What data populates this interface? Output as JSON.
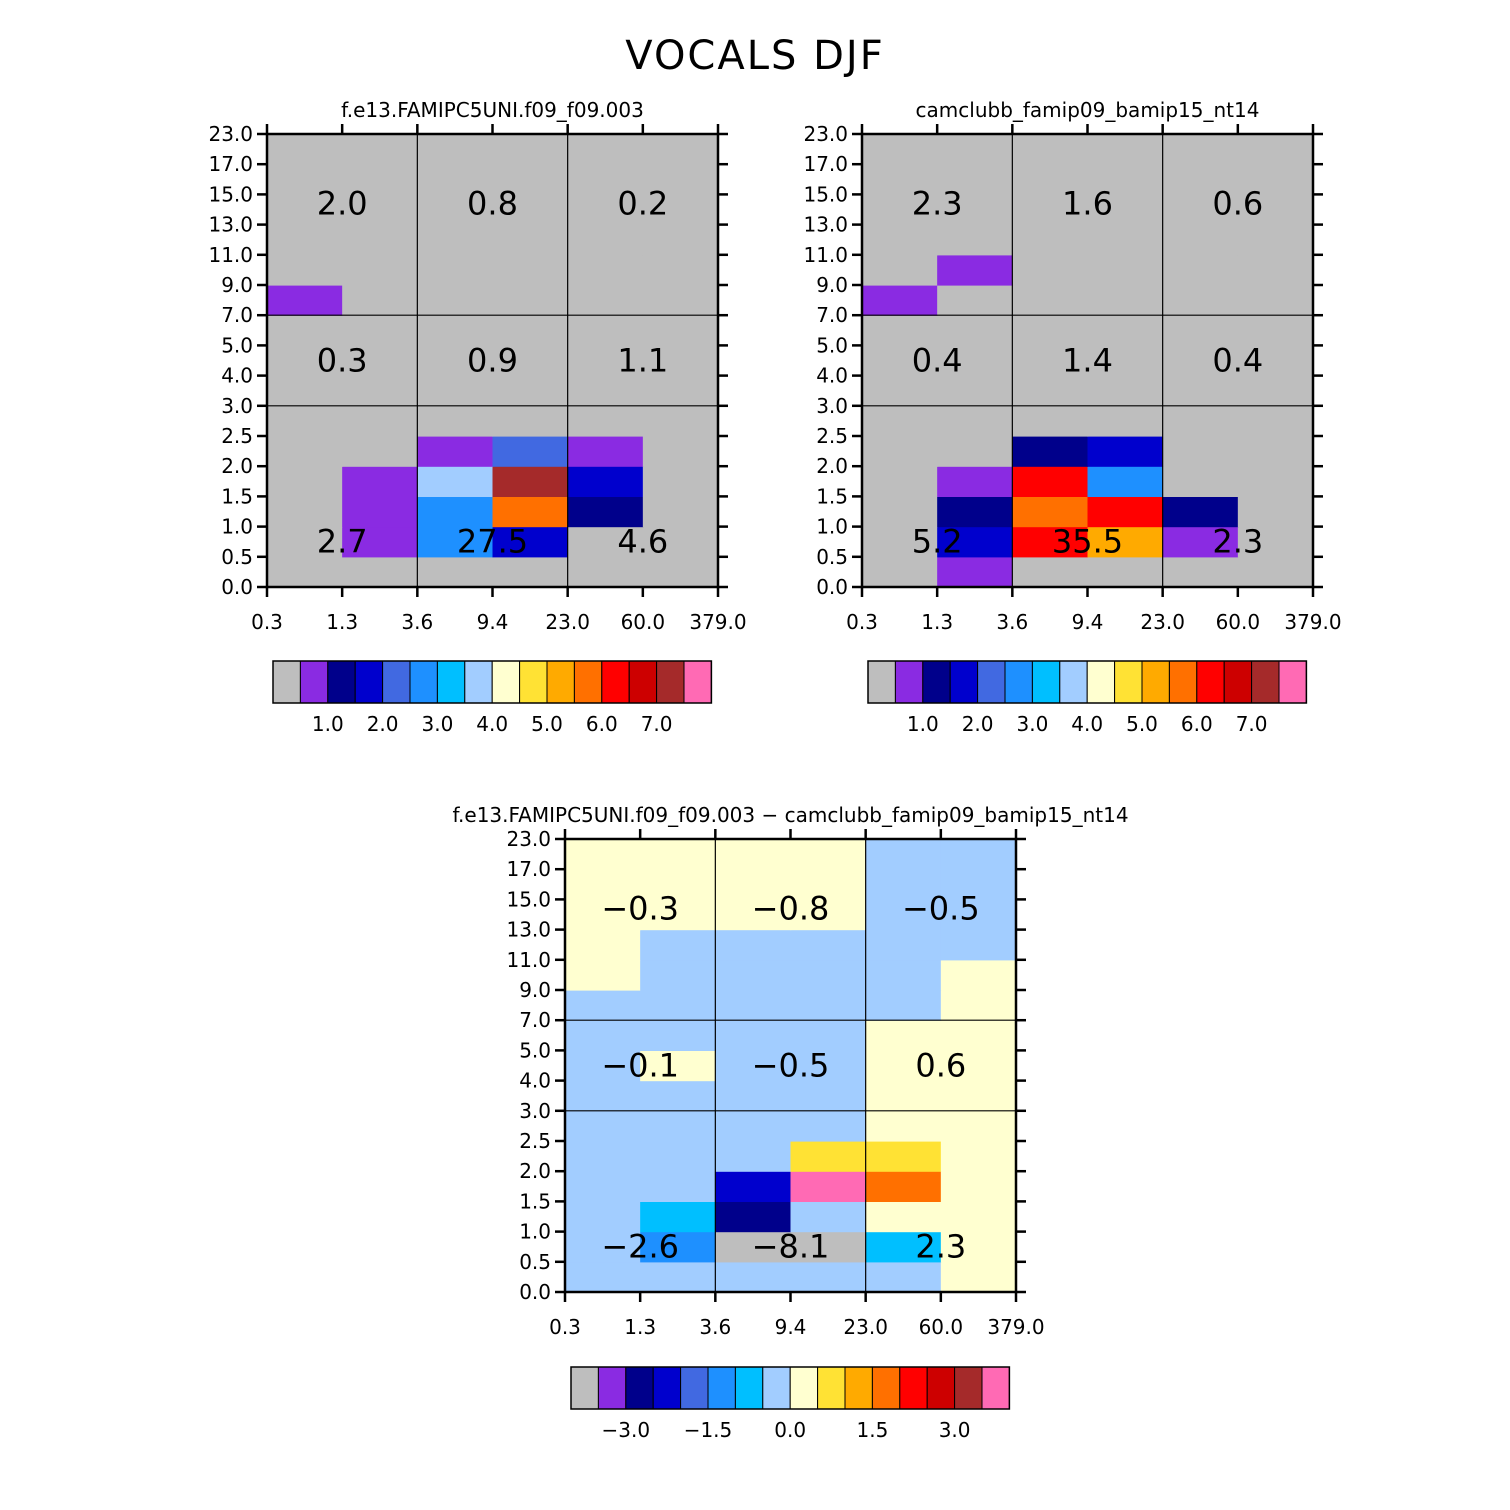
{
  "page_title": "VOCALS DJF",
  "palette": [
    "#bebebe",
    "#8a2be2",
    "#00008b",
    "#0000cd",
    "#4169e1",
    "#1e90ff",
    "#00bfff",
    "#a2cdff",
    "#ffffd0",
    "#ffe234",
    "#ffaa00",
    "#ff7000",
    "#ff0000",
    "#cd0000",
    "#a52a2a",
    "#ff6ab4"
  ],
  "grid_colors": {
    "frame": "#000000",
    "missing": "#bebebe"
  },
  "chart_data": [
    {
      "type": "heatmap",
      "title": "f.e13.FAMIPC5UNI.f09_f09.003",
      "x_ticks": [
        "0.3",
        "1.3",
        "3.6",
        "9.4",
        "23.0",
        "60.0",
        "379.0"
      ],
      "y_ticks": [
        "0.0",
        "0.5",
        "1.0",
        "1.5",
        "2.0",
        "2.5",
        "3.0",
        "4.0",
        "5.0",
        "7.0",
        "9.0",
        "11.0",
        "13.0",
        "15.0",
        "17.0",
        "23.0"
      ],
      "x_group_boundaries": [
        2,
        4
      ],
      "y_group_boundaries": [
        6,
        9
      ],
      "cells_by_row": [
        [
          0,
          0,
          0,
          0,
          0,
          0
        ],
        [
          0,
          1,
          5,
          3,
          0,
          0
        ],
        [
          0,
          1,
          5,
          11,
          2,
          0
        ],
        [
          0,
          1,
          7,
          14,
          3,
          0
        ],
        [
          0,
          0,
          1,
          4,
          1,
          0
        ],
        [
          0,
          0,
          0,
          0,
          0,
          0
        ],
        [
          0,
          0,
          0,
          0,
          0,
          0
        ],
        [
          0,
          0,
          0,
          0,
          0,
          0
        ],
        [
          0,
          0,
          0,
          0,
          0,
          0
        ],
        [
          1,
          0,
          0,
          0,
          0,
          0
        ],
        [
          0,
          0,
          0,
          0,
          0,
          0
        ],
        [
          0,
          0,
          0,
          0,
          0,
          0
        ],
        [
          0,
          0,
          0,
          0,
          0,
          0
        ],
        [
          0,
          0,
          0,
          0,
          0,
          0
        ],
        [
          0,
          0,
          0,
          0,
          0,
          0
        ]
      ],
      "group_labels": [
        [
          "2.7",
          "27.5",
          "4.6"
        ],
        [
          "0.3",
          "0.9",
          "1.1"
        ],
        [
          "2.0",
          "0.8",
          "0.2"
        ]
      ],
      "colorbar": {
        "labels": [
          "1.0",
          "2.0",
          "3.0",
          "4.0",
          "5.0",
          "6.0",
          "7.0"
        ]
      }
    },
    {
      "type": "heatmap",
      "title": "camclubb_famip09_bamip15_nt14",
      "x_ticks": [
        "0.3",
        "1.3",
        "3.6",
        "9.4",
        "23.0",
        "60.0",
        "379.0"
      ],
      "y_ticks": [
        "0.0",
        "0.5",
        "1.0",
        "1.5",
        "2.0",
        "2.5",
        "3.0",
        "4.0",
        "5.0",
        "7.0",
        "9.0",
        "11.0",
        "13.0",
        "15.0",
        "17.0",
        "23.0"
      ],
      "x_group_boundaries": [
        2,
        4
      ],
      "y_group_boundaries": [
        6,
        9
      ],
      "cells_by_row": [
        [
          0,
          1,
          0,
          0,
          0,
          0
        ],
        [
          0,
          3,
          12,
          10,
          1,
          0
        ],
        [
          0,
          2,
          11,
          12,
          2,
          0
        ],
        [
          0,
          1,
          12,
          5,
          0,
          0
        ],
        [
          0,
          0,
          2,
          3,
          0,
          0
        ],
        [
          0,
          0,
          0,
          0,
          0,
          0
        ],
        [
          0,
          0,
          0,
          0,
          0,
          0
        ],
        [
          0,
          0,
          0,
          0,
          0,
          0
        ],
        [
          0,
          0,
          0,
          0,
          0,
          0
        ],
        [
          1,
          0,
          0,
          0,
          0,
          0
        ],
        [
          0,
          1,
          0,
          0,
          0,
          0
        ],
        [
          0,
          0,
          0,
          0,
          0,
          0
        ],
        [
          0,
          0,
          0,
          0,
          0,
          0
        ],
        [
          0,
          0,
          0,
          0,
          0,
          0
        ],
        [
          0,
          0,
          0,
          0,
          0,
          0
        ]
      ],
      "group_labels": [
        [
          "5.2",
          "35.5",
          "2.3"
        ],
        [
          "0.4",
          "1.4",
          "0.4"
        ],
        [
          "2.3",
          "1.6",
          "0.6"
        ]
      ],
      "colorbar": {
        "labels": [
          "1.0",
          "2.0",
          "3.0",
          "4.0",
          "5.0",
          "6.0",
          "7.0"
        ]
      }
    },
    {
      "type": "heatmap",
      "title": "f.e13.FAMIPC5UNI.f09_f09.003 − camclubb_famip09_bamip15_nt14",
      "x_ticks": [
        "0.3",
        "1.3",
        "3.6",
        "9.4",
        "23.0",
        "60.0",
        "379.0"
      ],
      "y_ticks": [
        "0.0",
        "0.5",
        "1.0",
        "1.5",
        "2.0",
        "2.5",
        "3.0",
        "4.0",
        "5.0",
        "7.0",
        "9.0",
        "11.0",
        "13.0",
        "15.0",
        "17.0",
        "23.0"
      ],
      "x_group_boundaries": [
        2,
        4
      ],
      "y_group_boundaries": [
        6,
        9
      ],
      "cells_by_row": [
        [
          7,
          7,
          7,
          7,
          7,
          8
        ],
        [
          7,
          5,
          0,
          0,
          6,
          8
        ],
        [
          7,
          6,
          2,
          7,
          8,
          8
        ],
        [
          7,
          7,
          3,
          15,
          11,
          8
        ],
        [
          7,
          7,
          7,
          9,
          9,
          8
        ],
        [
          7,
          7,
          7,
          7,
          8,
          8
        ],
        [
          7,
          7,
          7,
          7,
          8,
          8
        ],
        [
          7,
          8,
          7,
          7,
          8,
          8
        ],
        [
          7,
          7,
          7,
          7,
          8,
          8
        ],
        [
          7,
          7,
          7,
          7,
          7,
          8
        ],
        [
          8,
          7,
          7,
          7,
          7,
          8
        ],
        [
          8,
          7,
          7,
          7,
          7,
          7
        ],
        [
          8,
          8,
          8,
          8,
          7,
          7
        ],
        [
          8,
          8,
          8,
          8,
          7,
          7
        ],
        [
          8,
          8,
          8,
          8,
          7,
          7
        ]
      ],
      "group_labels": [
        [
          "−2.6",
          "−8.1",
          "2.3"
        ],
        [
          "−0.1",
          "−0.5",
          "0.6"
        ],
        [
          "−0.3",
          "−0.8",
          "−0.5"
        ]
      ],
      "colorbar": {
        "labels": [
          "−3.0",
          "−1.5",
          "0.0",
          "1.5",
          "3.0"
        ]
      }
    }
  ]
}
